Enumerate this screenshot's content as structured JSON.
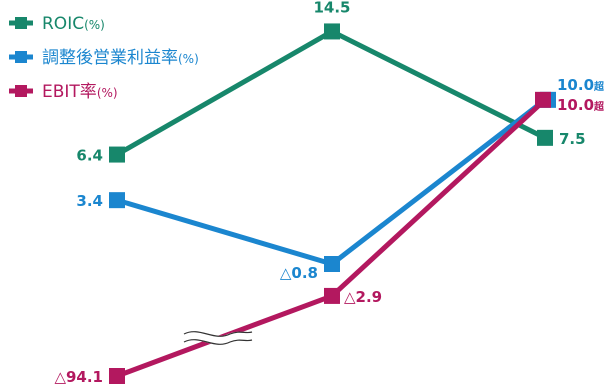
{
  "chart_data": {
    "type": "line",
    "categories": [
      "",
      "",
      ""
    ],
    "series": [
      {
        "name": "ROIC",
        "unit": "(%)",
        "color": "#17876b",
        "values": [
          6.4,
          14.5,
          7.5
        ],
        "labels": [
          "6.4",
          "14.5",
          "7.5"
        ],
        "label_suffixes": [
          "",
          "",
          ""
        ]
      },
      {
        "name": "調整後営業利益率",
        "unit": "(%)",
        "color": "#1b86cf",
        "values": [
          3.4,
          -0.8,
          10.0
        ],
        "labels": [
          "3.4",
          "△0.8",
          "10.0"
        ],
        "label_suffixes": [
          "",
          "",
          "超"
        ]
      },
      {
        "name": "EBIT率",
        "unit": "(%)",
        "color": "#b3185f",
        "values": [
          -94.1,
          -2.9,
          10.0
        ],
        "labels": [
          "△94.1",
          "△2.9",
          "10.0"
        ],
        "label_suffixes": [
          "",
          "",
          "超"
        ]
      }
    ],
    "axis_break": true,
    "legend_position": "top-left",
    "grid": false
  }
}
